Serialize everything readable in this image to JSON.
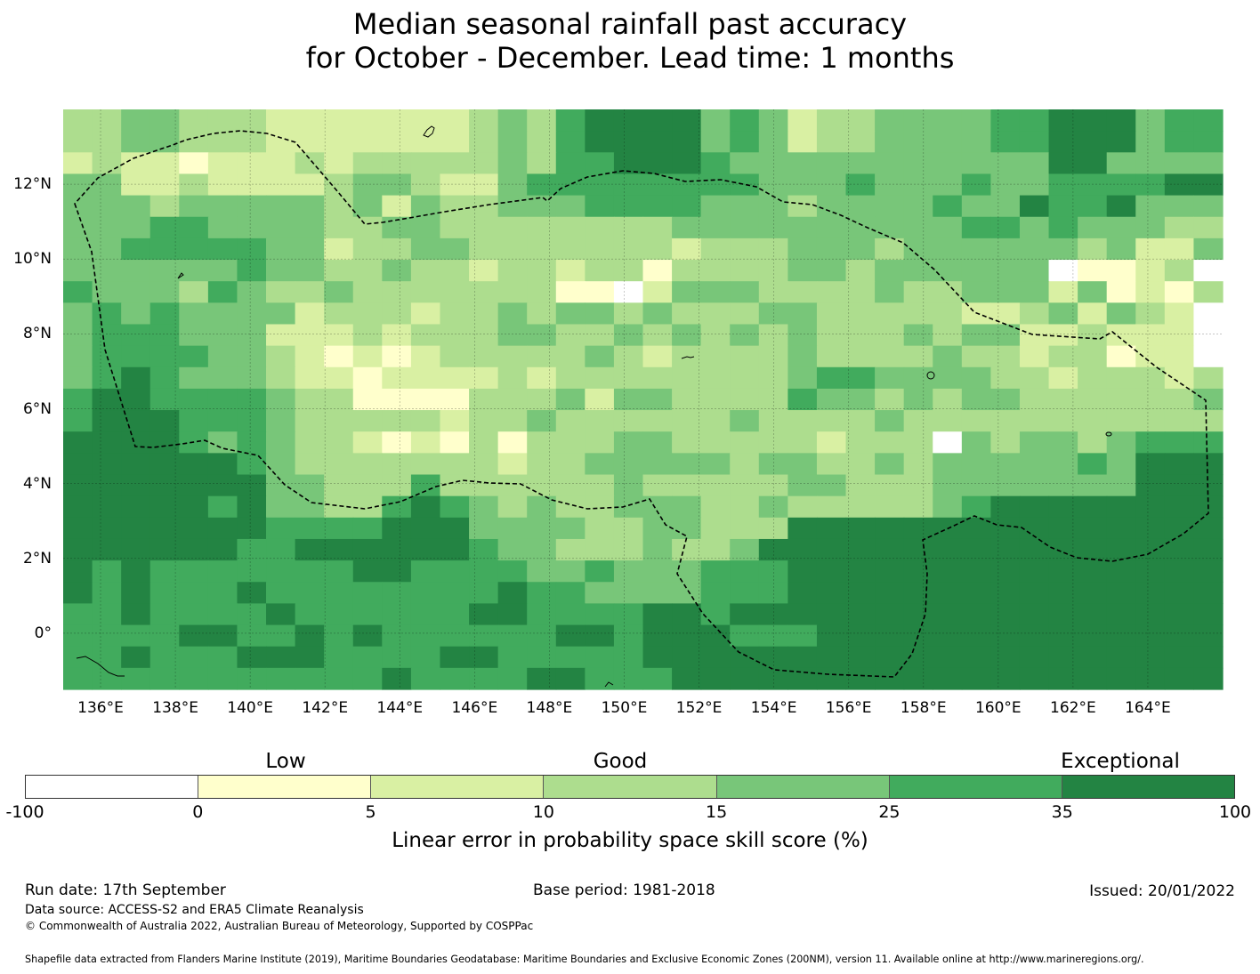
{
  "title": {
    "line1": "Median seasonal rainfall past accuracy",
    "line2": "for October - December. Lead time: 1 months"
  },
  "map": {
    "lon_labels": [
      "136°E",
      "138°E",
      "140°E",
      "142°E",
      "144°E",
      "146°E",
      "148°E",
      "150°E",
      "152°E",
      "154°E",
      "156°E",
      "158°E",
      "160°E",
      "162°E",
      "164°E"
    ],
    "lat_labels": [
      "12°N",
      "10°N",
      "8°N",
      "6°N",
      "4°N",
      "2°N",
      "0°"
    ],
    "lon_range": [
      135,
      166
    ],
    "lat_range": [
      -1.5,
      14
    ],
    "boundary_region": "Exclusive Economic Zone (dashed outline)"
  },
  "colorbar": {
    "categories": [
      "Low",
      "Good",
      "Exceptional"
    ],
    "ticks": [
      "-100",
      "0",
      "5",
      "10",
      "15",
      "25",
      "35",
      "100"
    ],
    "colors": [
      "#ffffff",
      "#ffffcc",
      "#d9f0a3",
      "#addd8e",
      "#78c679",
      "#41ab5d",
      "#238443"
    ],
    "label": "Linear error in probability space skill score (%)"
  },
  "footer": {
    "run_date": "Run date: 17th September",
    "base_period": "Base period: 1981-2018",
    "issued": "Issued: 20/01/2022",
    "data_source": "Data source: ACCESS-S2 and ERA5 Climate Reanalysis",
    "copyright": "© Commonwealth of Australia 2022, Australian Bureau of Meteorology, Supported by COSPPac",
    "shapefile": "Shapefile data extracted from Flanders Marine Institute (2019), Maritime Boundaries Geodatabase: Maritime Boundaries and Exclusive Economic Zones (200NM), version 11. Available online at http://www.marineregions.org/."
  },
  "grid_rows": [
    "3344333222222234356666454233444455666455",
    "3344333222222234356666454233444455666455",
    "2322122232333334355666544444444444664444",
    "4422322223443224555555554445444544555566",
    "4443444443424334445555444344445446556444",
    "4445544443344333333334444444444554544433",
    "4455555442334433333332333444344444434224",
    "4444445443343323323313333443444444011230",
    "5444354334333333311024443333433444241213",
    "4545444423332334344343334433333223424320",
    "4555444222323334433434343433343442232220",
    "4555544321212333334323333433334332331220",
    "4565444322122223233333333455444433233323",
    "5665555433111133342443333544343443333334",
    "5666555433333233433333343333433333333333",
    "6666545433212131333443333323330434434555",
    "6666665433333332334444434433434444454666",
    "6666666443335333333433333443334444444666",
    "6666656443356543433444334333334566666666",
    "6666666555566644443344333666666666666666",
    "6666665566666654433343346666666666666666",
    "6565555555665555445444555666666666666666",
    "6565556555555556554444555666666666666666",
    "5565555655555566555566566666666666666666",
    "5555665565655555566566655566666666666666",
    "5565556665555665555566666666666666666666",
    "5555555555565555665556666666666666666666"
  ]
}
